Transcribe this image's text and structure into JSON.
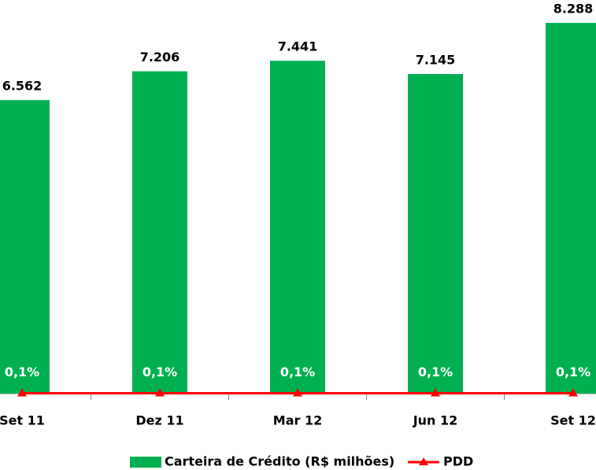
{
  "chart_data": {
    "type": "bar_line",
    "categories": [
      "Set 11",
      "Dez 11",
      "Mar 12",
      "Jun 12",
      "Set 12"
    ],
    "series": [
      {
        "name": "Carteira de Crédito (R$ milhões)",
        "type": "bar",
        "color": "#00b050",
        "values": [
          6562,
          7206,
          7441,
          7145,
          8288
        ],
        "value_labels": [
          "6.562",
          "7.206",
          "7.441",
          "7.145",
          "8.288"
        ]
      },
      {
        "name": "PDD",
        "type": "line",
        "axis": "y2",
        "color": "#ff0000",
        "values": [
          0.1,
          0.1,
          0.1,
          0.1,
          0.1
        ],
        "value_labels": [
          "0,1%",
          "0,1%",
          "0,1%",
          "0,1%",
          "0,1%"
        ]
      }
    ],
    "ylim": [
      0,
      8800
    ],
    "y2lim": [
      0,
      100
    ],
    "legend": "bottom"
  }
}
